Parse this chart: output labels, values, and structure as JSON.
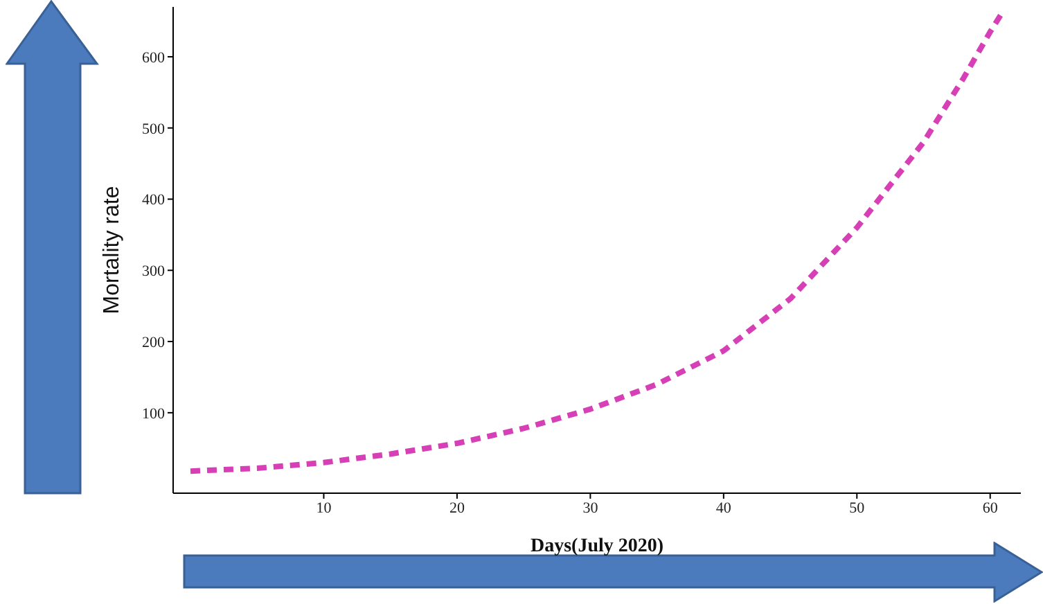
{
  "chart_data": {
    "type": "line",
    "xlabel": "Days(July 2020)",
    "ylabel": "Mortality rate",
    "series": [
      {
        "color": "#d63fb6",
        "x": [
          0,
          5,
          10,
          15,
          20,
          25,
          30,
          35,
          40,
          45,
          50,
          55,
          58,
          60,
          61
        ],
        "values": [
          18,
          22,
          30,
          42,
          57,
          78,
          105,
          140,
          187,
          260,
          360,
          480,
          570,
          635,
          665
        ]
      }
    ],
    "xlim": [
      -1.3,
      62.3
    ],
    "ylim": [
      -13,
      670
    ],
    "xticks": [
      10,
      20,
      30,
      40,
      50,
      60
    ],
    "yticks": [
      100,
      200,
      300,
      400,
      500,
      600
    ],
    "grid": false,
    "legend": false,
    "marker": "none",
    "line_style": "dashed"
  }
}
